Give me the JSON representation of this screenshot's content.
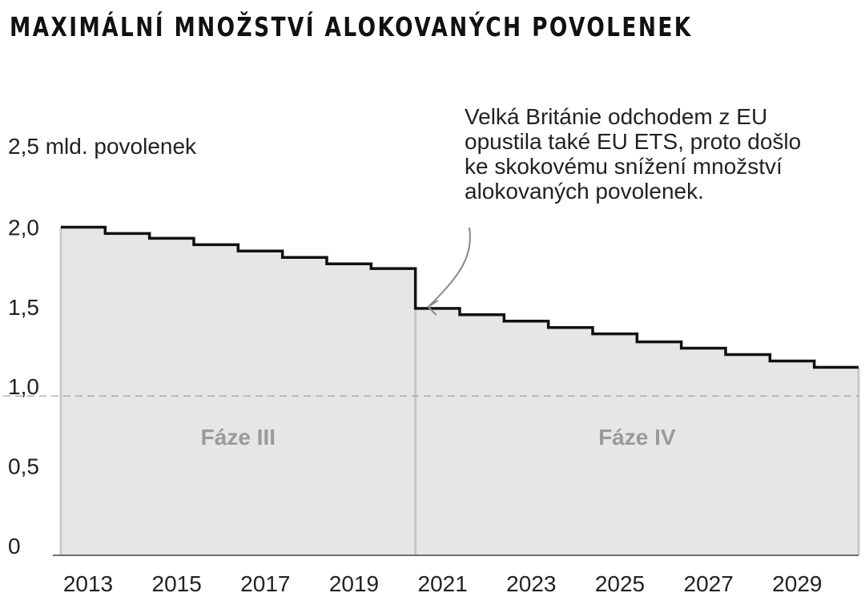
{
  "title": "MAXIMÁLNÍ MNOŽSTVÍ ALOKOVANÝCH POVOLENEK",
  "chart_data": {
    "type": "area",
    "style": "step",
    "title": "MAXIMÁLNÍ MNOŽSTVÍ ALOKOVANÝCH POVOLENEK",
    "ylabel": "2,5 mld. povolenek",
    "xlabel": "",
    "ylim": [
      0,
      2.5
    ],
    "xlim": [
      2013,
      2031
    ],
    "y_ticks": [
      "0",
      "0,5",
      "1,0",
      "1,5",
      "2,0"
    ],
    "y_tick_values": [
      0,
      0.5,
      1.0,
      1.5,
      2.0
    ],
    "x_ticks": [
      "2013",
      "2015",
      "2017",
      "2019",
      "2021",
      "2023",
      "2025",
      "2027",
      "2029"
    ],
    "x_tick_values": [
      2013,
      2015,
      2017,
      2019,
      2021,
      2023,
      2025,
      2027,
      2029
    ],
    "grid": false,
    "reference_line": 1.0,
    "series": [
      {
        "x": [
          2013,
          2014,
          2015,
          2016,
          2017,
          2018,
          2019,
          2020,
          2021,
          2022,
          2023,
          2024,
          2025,
          2026,
          2027,
          2028,
          2029,
          2030
        ],
        "values": [
          2.06,
          2.02,
          1.99,
          1.95,
          1.91,
          1.87,
          1.83,
          1.8,
          1.55,
          1.51,
          1.47,
          1.43,
          1.39,
          1.34,
          1.3,
          1.26,
          1.22,
          1.18
        ]
      }
    ],
    "phases": [
      {
        "label": "Fáze III",
        "start": 2013,
        "end": 2021
      },
      {
        "label": "Fáze IV",
        "start": 2021,
        "end": 2031
      }
    ],
    "annotation": {
      "lines": [
        "Velká Británie odchodem z EU",
        "opustila také EU ETS, proto došlo",
        "ke skokovému snížení množství",
        "alokovaných povolenek."
      ],
      "target_x": 2021,
      "target_y": 1.65
    },
    "colors": {
      "fill": "#e6e6e6",
      "line": "#111111",
      "phase_text": "#9a9a9a",
      "divider": "#c8c8c8",
      "reference": "#999999"
    }
  }
}
